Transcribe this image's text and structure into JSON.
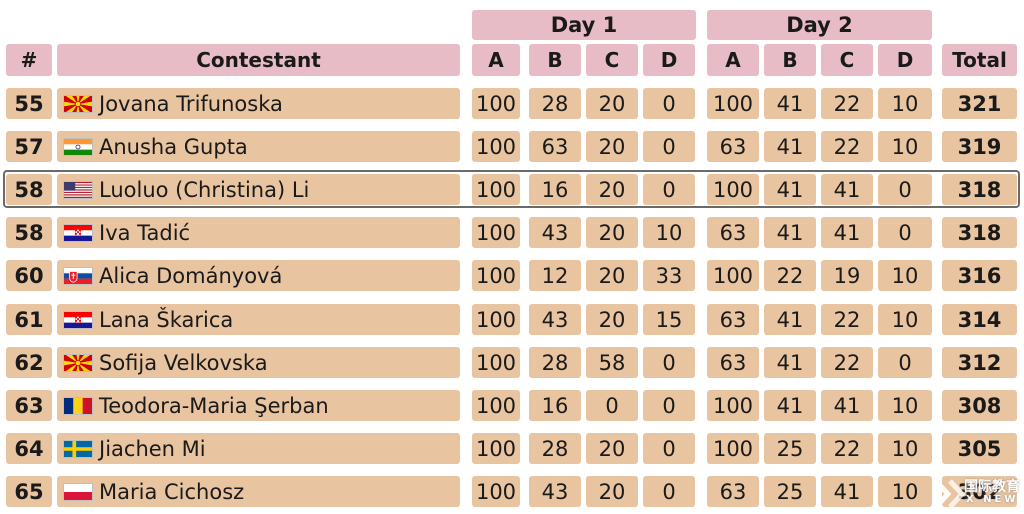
{
  "header": {
    "rank": "#",
    "contestant": "Contestant",
    "day1": "Day 1",
    "day2": "Day 2",
    "problems": [
      "A",
      "B",
      "C",
      "D"
    ],
    "total": "Total"
  },
  "rows": [
    {
      "rank": "55",
      "flag": "MK",
      "name": "Jovana Trifunoska",
      "d1": [
        "100",
        "28",
        "20",
        "0"
      ],
      "d2": [
        "100",
        "41",
        "22",
        "10"
      ],
      "total": "321"
    },
    {
      "rank": "57",
      "flag": "IN",
      "name": "Anusha Gupta",
      "d1": [
        "100",
        "63",
        "20",
        "0"
      ],
      "d2": [
        "63",
        "41",
        "22",
        "10"
      ],
      "total": "319"
    },
    {
      "rank": "58",
      "flag": "US",
      "name": "Luoluo (Christina) Li",
      "d1": [
        "100",
        "16",
        "20",
        "0"
      ],
      "d2": [
        "100",
        "41",
        "41",
        "0"
      ],
      "total": "318",
      "highlighted": true
    },
    {
      "rank": "58",
      "flag": "HR",
      "name": "Iva Tadić",
      "d1": [
        "100",
        "43",
        "20",
        "10"
      ],
      "d2": [
        "63",
        "41",
        "41",
        "0"
      ],
      "total": "318"
    },
    {
      "rank": "60",
      "flag": "SK",
      "name": "Alica Dományová",
      "d1": [
        "100",
        "12",
        "20",
        "33"
      ],
      "d2": [
        "100",
        "22",
        "19",
        "10"
      ],
      "total": "316"
    },
    {
      "rank": "61",
      "flag": "HR",
      "name": "Lana Škarica",
      "d1": [
        "100",
        "43",
        "20",
        "15"
      ],
      "d2": [
        "63",
        "41",
        "22",
        "10"
      ],
      "total": "314"
    },
    {
      "rank": "62",
      "flag": "MK",
      "name": "Sofija Velkovska",
      "d1": [
        "100",
        "28",
        "58",
        "0"
      ],
      "d2": [
        "63",
        "41",
        "22",
        "0"
      ],
      "total": "312"
    },
    {
      "rank": "63",
      "flag": "RO",
      "name": "Teodora-Maria Şerban",
      "d1": [
        "100",
        "16",
        "0",
        "0"
      ],
      "d2": [
        "100",
        "41",
        "41",
        "10"
      ],
      "total": "308"
    },
    {
      "rank": "64",
      "flag": "SE",
      "name": "Jiachen Mi",
      "d1": [
        "100",
        "28",
        "20",
        "0"
      ],
      "d2": [
        "100",
        "25",
        "22",
        "10"
      ],
      "total": "305"
    },
    {
      "rank": "65",
      "flag": "PL",
      "name": "Maria Cichosz",
      "d1": [
        "100",
        "43",
        "20",
        "0"
      ],
      "d2": [
        "63",
        "25",
        "41",
        "10"
      ],
      "total": "302"
    }
  ],
  "colors": {
    "header": "#e8bcc6",
    "row": "#e8c4a0",
    "highlight_border": "#6a6a6a"
  },
  "watermark": {
    "line1": "国际教育",
    "line2": "X NEW"
  }
}
